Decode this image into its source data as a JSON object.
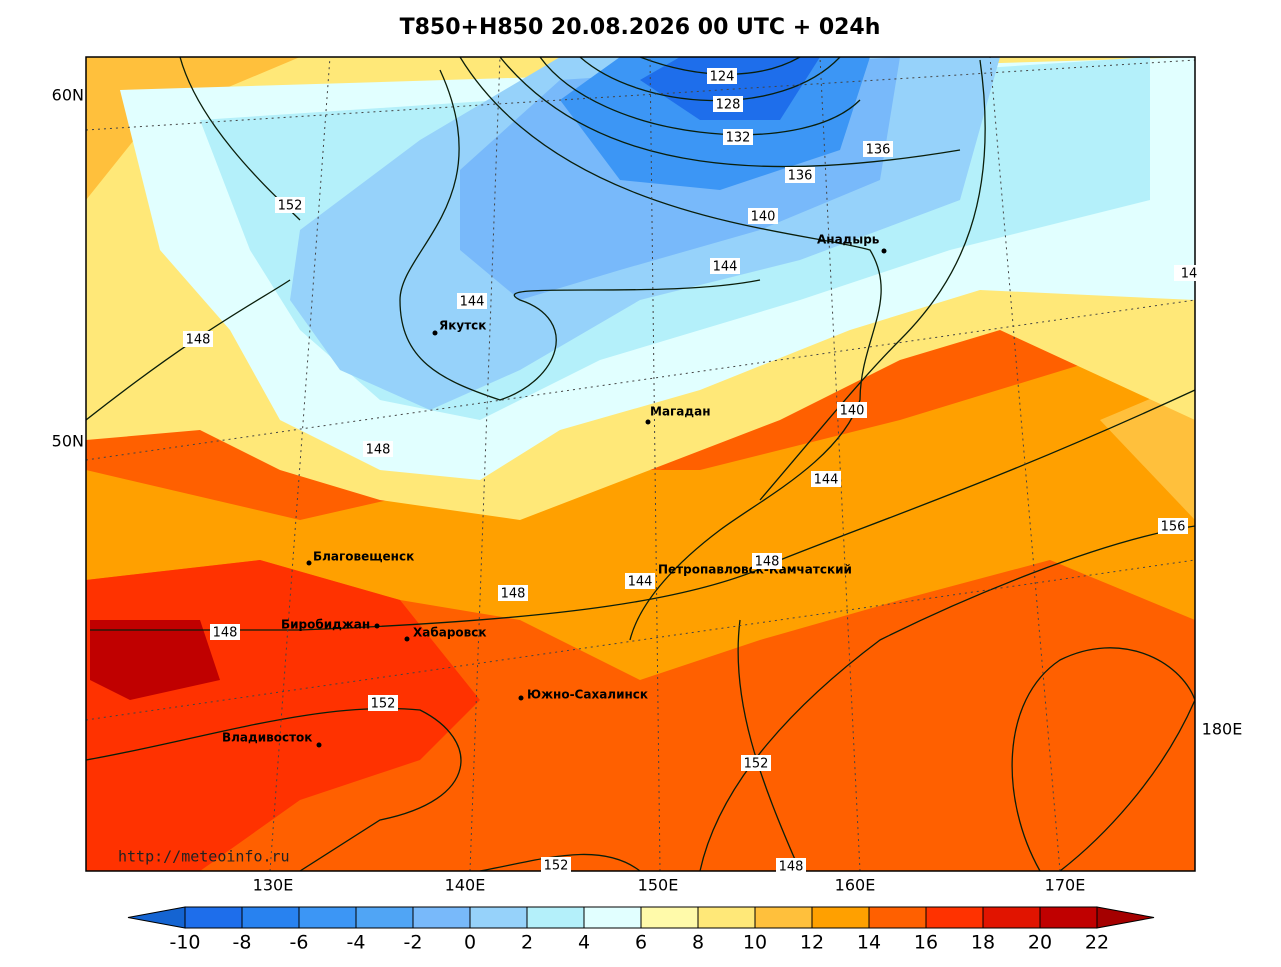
{
  "title": "T850+H850 20.08.2026 00 UTC + 024h",
  "lat_labels": [
    "60N",
    "50N"
  ],
  "lon_labels": [
    "130E",
    "140E",
    "150E",
    "160E",
    "170E",
    "180E"
  ],
  "cities": [
    "Якутск",
    "Магадан",
    "Анадырь",
    "Петропавловск-Камчатский",
    "Благовещенск",
    "Биробиджан",
    "Хабаровск",
    "Южно-Сахалинск",
    "Владивосток"
  ],
  "contour_labels": [
    124,
    128,
    132,
    136,
    136,
    140,
    144,
    144,
    152,
    148,
    148,
    140,
    144,
    148,
    144,
    156,
    148,
    148,
    152,
    152,
    152,
    148,
    14
  ],
  "source": "http://meteoinfo.ru",
  "colorbar": {
    "ticks": [
      -10,
      -8,
      -6,
      -4,
      -2,
      0,
      2,
      4,
      6,
      8,
      10,
      12,
      14,
      16,
      18,
      20,
      22
    ],
    "colors": [
      "#1464d2",
      "#1e6eeb",
      "#2882f0",
      "#3c96f5",
      "#50a5f5",
      "#78b9fa",
      "#96d2fa",
      "#b4f0fa",
      "#e1ffff",
      "#fffaaa",
      "#ffe878",
      "#ffc03c",
      "#ffa000",
      "#ff6000",
      "#ff3200",
      "#e11400",
      "#c00000",
      "#a50000"
    ]
  }
}
